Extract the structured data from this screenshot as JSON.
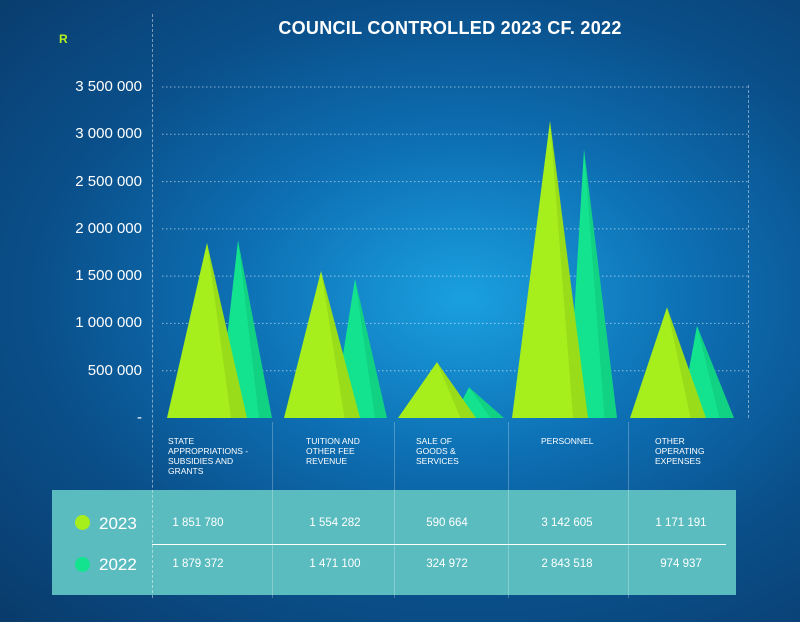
{
  "colors": {
    "y2023": "#a6ef1c",
    "y2022": "#13e38f",
    "table_bg": "#5bbcc0",
    "unit_label": "#b6f21d"
  },
  "chart_data": {
    "type": "area",
    "title": "COUNCIL CONTROLLED 2023 CF. 2022",
    "ylabel": "R",
    "ylim": [
      0,
      3500000
    ],
    "y_ticks": [
      {
        "value": 3500000,
        "label": "3 500 000"
      },
      {
        "value": 3000000,
        "label": "3 000 000"
      },
      {
        "value": 2500000,
        "label": "2 500 000"
      },
      {
        "value": 2000000,
        "label": "2 000 000"
      },
      {
        "value": 1500000,
        "label": "1 500 000"
      },
      {
        "value": 1000000,
        "label": "1 000 000"
      },
      {
        "value": 500000,
        "label": "500 000"
      },
      {
        "value": 0,
        "label": "-"
      }
    ],
    "categories": [
      "STATE APPROPRIATIONS -SUBSIDIES AND GRANTS",
      "TUITION AND OTHER FEE REVENUE",
      "SALE OF GOODS & SERVICES",
      "PERSONNEL",
      "OTHER OPERATING EXPENSES"
    ],
    "series": [
      {
        "name": "2023",
        "values": [
          1851780,
          1554282,
          590664,
          3142605,
          1171191
        ],
        "labels": [
          "1 851 780",
          "1 554 282",
          "590 664",
          "3 142 605",
          "1 171 191"
        ]
      },
      {
        "name": "2022",
        "values": [
          1879372,
          1471100,
          324972,
          2843518,
          974937
        ],
        "labels": [
          "1 879 372",
          "1 471 100",
          "324 972",
          "2 843 518",
          "974 937"
        ]
      }
    ],
    "grid": true
  }
}
